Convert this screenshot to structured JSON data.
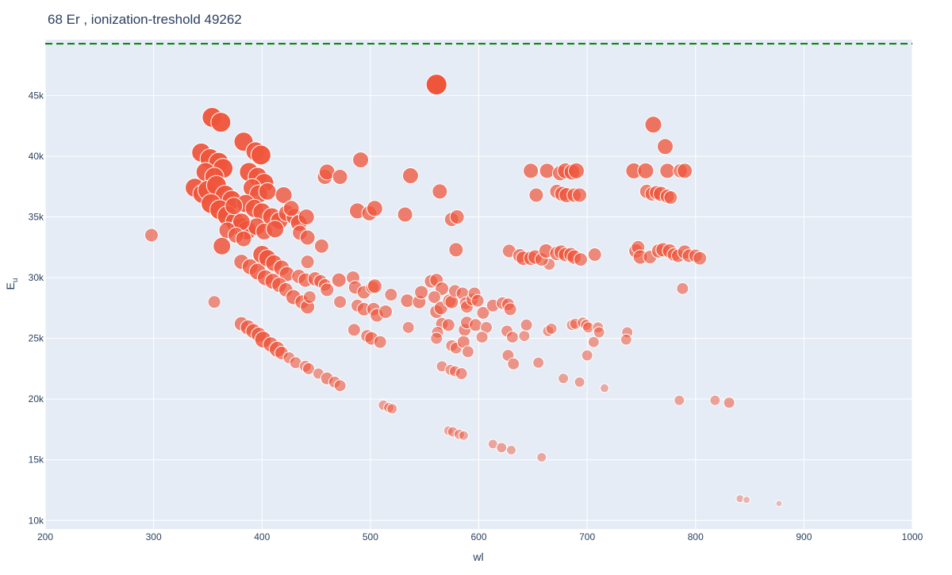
{
  "chart_data": {
    "type": "scatter",
    "title": "68 Er , ionization-treshold 49262",
    "xlabel": "wl",
    "ylabel_main": "E",
    "ylabel_sub": "u",
    "xlim": [
      200,
      1000
    ],
    "ylim": [
      9300,
      49600
    ],
    "xticks": [
      200,
      300,
      400,
      500,
      600,
      700,
      800,
      900,
      1000
    ],
    "yticks": [
      10000,
      15000,
      20000,
      25000,
      30000,
      35000,
      40000,
      45000
    ],
    "ytick_labels": [
      "10k",
      "15k",
      "20k",
      "25k",
      "30k",
      "35k",
      "40k",
      "45k"
    ],
    "threshold": 49262,
    "grid": true,
    "colors": {
      "background": "#E5ECF6",
      "marker": "#EF553B",
      "threshold_line": "#008000",
      "text": "#2a3f5f",
      "grid": "#ffffff"
    },
    "points": [
      [
        561,
        45900,
        1.0
      ],
      [
        354,
        43200,
        0.95
      ],
      [
        362,
        42800,
        0.95
      ],
      [
        383,
        41200,
        0.9
      ],
      [
        394,
        40400,
        0.9
      ],
      [
        399,
        40100,
        0.95
      ],
      [
        344,
        40300,
        0.9
      ],
      [
        352,
        39800,
        0.95
      ],
      [
        360,
        39500,
        0.95
      ],
      [
        364,
        39000,
        0.95
      ],
      [
        348,
        38700,
        0.9
      ],
      [
        356,
        38300,
        0.9
      ],
      [
        338,
        37400,
        0.9
      ],
      [
        345,
        36900,
        0.9
      ],
      [
        350,
        37200,
        0.95
      ],
      [
        358,
        37600,
        0.95
      ],
      [
        366,
        36800,
        0.95
      ],
      [
        372,
        36400,
        0.9
      ],
      [
        353,
        36100,
        0.95
      ],
      [
        361,
        35600,
        0.95
      ],
      [
        368,
        35100,
        0.95
      ],
      [
        375,
        34600,
        0.9
      ],
      [
        380,
        34200,
        0.9
      ],
      [
        386,
        33900,
        0.9
      ],
      [
        388,
        38700,
        0.9
      ],
      [
        396,
        38300,
        0.9
      ],
      [
        402,
        37800,
        0.9
      ],
      [
        391,
        37400,
        0.85
      ],
      [
        397,
        36900,
        0.85
      ],
      [
        405,
        37100,
        0.8
      ],
      [
        385,
        36100,
        0.85
      ],
      [
        393,
        35700,
        0.85
      ],
      [
        400,
        35400,
        0.85
      ],
      [
        409,
        35000,
        0.85
      ],
      [
        416,
        34700,
        0.8
      ],
      [
        423,
        35300,
        0.75
      ],
      [
        430,
        35000,
        0.75
      ],
      [
        434,
        34500,
        0.75
      ],
      [
        441,
        35000,
        0.7
      ],
      [
        395,
        34200,
        0.8
      ],
      [
        402,
        33800,
        0.75
      ],
      [
        412,
        34000,
        0.8
      ],
      [
        381,
        34600,
        0.8
      ],
      [
        374,
        35900,
        0.8
      ],
      [
        368,
        33900,
        0.75
      ],
      [
        376,
        33500,
        0.7
      ],
      [
        383,
        33200,
        0.7
      ],
      [
        420,
        36800,
        0.75
      ],
      [
        427,
        35700,
        0.7
      ],
      [
        435,
        33700,
        0.65
      ],
      [
        442,
        33300,
        0.65
      ],
      [
        455,
        32600,
        0.6
      ],
      [
        363,
        32600,
        0.8
      ],
      [
        298,
        33500,
        0.55
      ],
      [
        381,
        31300,
        0.65
      ],
      [
        389,
        30900,
        0.7
      ],
      [
        396,
        30500,
        0.75
      ],
      [
        400,
        31900,
        0.85
      ],
      [
        405,
        31600,
        0.8
      ],
      [
        411,
        31200,
        0.75
      ],
      [
        418,
        30800,
        0.7
      ],
      [
        423,
        30300,
        0.65
      ],
      [
        403,
        30000,
        0.7
      ],
      [
        410,
        29700,
        0.7
      ],
      [
        416,
        29400,
        0.65
      ],
      [
        422,
        29000,
        0.6
      ],
      [
        429,
        28400,
        0.65
      ],
      [
        437,
        28000,
        0.6
      ],
      [
        442,
        27600,
        0.6
      ],
      [
        434,
        30100,
        0.6
      ],
      [
        440,
        29800,
        0.6
      ],
      [
        449,
        29900,
        0.6
      ],
      [
        454,
        29700,
        0.55
      ],
      [
        442,
        31300,
        0.55
      ],
      [
        381,
        26200,
        0.6
      ],
      [
        387,
        25900,
        0.65
      ],
      [
        392,
        25600,
        0.65
      ],
      [
        397,
        25300,
        0.65
      ],
      [
        401,
        24900,
        0.75
      ],
      [
        408,
        24500,
        0.65
      ],
      [
        414,
        24100,
        0.7
      ],
      [
        418,
        23800,
        0.55
      ],
      [
        425,
        23400,
        0.45
      ],
      [
        431,
        23000,
        0.45
      ],
      [
        440,
        22700,
        0.45
      ],
      [
        443,
        22500,
        0.45
      ],
      [
        452,
        22100,
        0.4
      ],
      [
        460,
        21700,
        0.5
      ],
      [
        467,
        21400,
        0.45
      ],
      [
        472,
        21100,
        0.45
      ],
      [
        356,
        28000,
        0.5
      ],
      [
        458,
        38300,
        0.65
      ],
      [
        460,
        38700,
        0.7
      ],
      [
        472,
        38300,
        0.65
      ],
      [
        491,
        39700,
        0.7
      ],
      [
        488,
        35500,
        0.7
      ],
      [
        499,
        35300,
        0.65
      ],
      [
        504,
        35700,
        0.7
      ],
      [
        532,
        35200,
        0.65
      ],
      [
        537,
        38400,
        0.7
      ],
      [
        564,
        37100,
        0.65
      ],
      [
        575,
        34800,
        0.6
      ],
      [
        580,
        35000,
        0.6
      ],
      [
        579,
        32300,
        0.6
      ],
      [
        471,
        29800,
        0.6
      ],
      [
        484,
        30000,
        0.55
      ],
      [
        486,
        29200,
        0.55
      ],
      [
        494,
        28800,
        0.55
      ],
      [
        502,
        29200,
        0.55
      ],
      [
        504,
        29300,
        0.6
      ],
      [
        444,
        28400,
        0.5
      ],
      [
        458,
        29400,
        0.5
      ],
      [
        460,
        29000,
        0.55
      ],
      [
        472,
        28000,
        0.5
      ],
      [
        488,
        27700,
        0.5
      ],
      [
        494,
        27400,
        0.55
      ],
      [
        503,
        27400,
        0.55
      ],
      [
        506,
        26900,
        0.55
      ],
      [
        514,
        27200,
        0.55
      ],
      [
        485,
        25700,
        0.5
      ],
      [
        497,
        25200,
        0.5
      ],
      [
        501,
        25000,
        0.55
      ],
      [
        509,
        24700,
        0.5
      ],
      [
        519,
        28600,
        0.5
      ],
      [
        534,
        28100,
        0.55
      ],
      [
        545,
        28000,
        0.55
      ],
      [
        547,
        28800,
        0.55
      ],
      [
        556,
        29700,
        0.55
      ],
      [
        561,
        29800,
        0.55
      ],
      [
        566,
        29100,
        0.55
      ],
      [
        559,
        28400,
        0.5
      ],
      [
        561,
        27200,
        0.55
      ],
      [
        565,
        27500,
        0.55
      ],
      [
        573,
        28100,
        0.55
      ],
      [
        575,
        28000,
        0.55
      ],
      [
        578,
        28900,
        0.5
      ],
      [
        585,
        28700,
        0.5
      ],
      [
        588,
        27900,
        0.5
      ],
      [
        589,
        27600,
        0.5
      ],
      [
        594,
        28200,
        0.5
      ],
      [
        596,
        28700,
        0.5
      ],
      [
        599,
        28100,
        0.5
      ],
      [
        604,
        27100,
        0.5
      ],
      [
        613,
        27700,
        0.5
      ],
      [
        622,
        27900,
        0.5
      ],
      [
        627,
        27800,
        0.5
      ],
      [
        629,
        27400,
        0.5
      ],
      [
        535,
        25900,
        0.45
      ],
      [
        566,
        26200,
        0.5
      ],
      [
        572,
        26100,
        0.5
      ],
      [
        562,
        25500,
        0.45
      ],
      [
        561,
        25000,
        0.45
      ],
      [
        575,
        24400,
        0.45
      ],
      [
        579,
        24200,
        0.45
      ],
      [
        587,
        25700,
        0.5
      ],
      [
        589,
        26300,
        0.5
      ],
      [
        597,
        26100,
        0.5
      ],
      [
        607,
        25900,
        0.45
      ],
      [
        603,
        25100,
        0.45
      ],
      [
        586,
        24700,
        0.5
      ],
      [
        590,
        23900,
        0.45
      ],
      [
        626,
        25600,
        0.45
      ],
      [
        631,
        25100,
        0.45
      ],
      [
        642,
        25200,
        0.4
      ],
      [
        644,
        26100,
        0.45
      ],
      [
        664,
        25600,
        0.4
      ],
      [
        667,
        25800,
        0.4
      ],
      [
        686,
        26100,
        0.4
      ],
      [
        689,
        26200,
        0.4
      ],
      [
        696,
        26300,
        0.4
      ],
      [
        699,
        26100,
        0.4
      ],
      [
        701,
        25900,
        0.4
      ],
      [
        710,
        25900,
        0.4
      ],
      [
        711,
        25500,
        0.4
      ],
      [
        706,
        24700,
        0.4
      ],
      [
        700,
        23600,
        0.4
      ],
      [
        737,
        25500,
        0.4
      ],
      [
        736,
        24900,
        0.4
      ],
      [
        627,
        23600,
        0.45
      ],
      [
        632,
        22900,
        0.45
      ],
      [
        655,
        23000,
        0.4
      ],
      [
        566,
        22700,
        0.4
      ],
      [
        574,
        22400,
        0.4
      ],
      [
        578,
        22300,
        0.4
      ],
      [
        584,
        22100,
        0.45
      ],
      [
        678,
        21700,
        0.35
      ],
      [
        693,
        21400,
        0.35
      ],
      [
        716,
        20900,
        0.25
      ],
      [
        788,
        29100,
        0.45
      ],
      [
        665,
        31100,
        0.45
      ],
      [
        512,
        19500,
        0.35
      ],
      [
        517,
        19300,
        0.35
      ],
      [
        520,
        19200,
        0.35
      ],
      [
        572,
        17400,
        0.3
      ],
      [
        576,
        17300,
        0.35
      ],
      [
        582,
        17100,
        0.35
      ],
      [
        586,
        17000,
        0.3
      ],
      [
        613,
        16300,
        0.3
      ],
      [
        621,
        16000,
        0.35
      ],
      [
        630,
        15800,
        0.3
      ],
      [
        658,
        15200,
        0.3
      ],
      [
        785,
        19900,
        0.35
      ],
      [
        818,
        19900,
        0.35
      ],
      [
        831,
        19700,
        0.4
      ],
      [
        841,
        11800,
        0.2
      ],
      [
        847,
        11700,
        0.15
      ],
      [
        877,
        11400,
        0.1
      ],
      [
        648,
        38800,
        0.65
      ],
      [
        663,
        38800,
        0.65
      ],
      [
        675,
        38600,
        0.65
      ],
      [
        680,
        38800,
        0.7
      ],
      [
        686,
        38700,
        0.7
      ],
      [
        690,
        38800,
        0.7
      ],
      [
        653,
        36800,
        0.6
      ],
      [
        672,
        37100,
        0.6
      ],
      [
        677,
        36900,
        0.65
      ],
      [
        681,
        36800,
        0.65
      ],
      [
        688,
        36800,
        0.6
      ],
      [
        693,
        36800,
        0.6
      ],
      [
        628,
        32200,
        0.55
      ],
      [
        638,
        31800,
        0.6
      ],
      [
        641,
        31600,
        0.6
      ],
      [
        648,
        31600,
        0.6
      ],
      [
        652,
        31700,
        0.6
      ],
      [
        658,
        31500,
        0.55
      ],
      [
        662,
        32200,
        0.6
      ],
      [
        672,
        32000,
        0.6
      ],
      [
        676,
        32100,
        0.6
      ],
      [
        680,
        31900,
        0.6
      ],
      [
        685,
        31900,
        0.6
      ],
      [
        688,
        31700,
        0.6
      ],
      [
        694,
        31500,
        0.55
      ],
      [
        707,
        31900,
        0.55
      ],
      [
        743,
        38800,
        0.7
      ],
      [
        754,
        38800,
        0.7
      ],
      [
        774,
        38800,
        0.65
      ],
      [
        786,
        38800,
        0.6
      ],
      [
        790,
        38800,
        0.65
      ],
      [
        755,
        37100,
        0.6
      ],
      [
        760,
        36900,
        0.6
      ],
      [
        764,
        37000,
        0.6
      ],
      [
        768,
        36900,
        0.65
      ],
      [
        774,
        36700,
        0.6
      ],
      [
        777,
        36600,
        0.55
      ],
      [
        761,
        42600,
        0.75
      ],
      [
        772,
        40800,
        0.7
      ],
      [
        745,
        32200,
        0.6
      ],
      [
        747,
        32500,
        0.55
      ],
      [
        749,
        31700,
        0.6
      ],
      [
        758,
        31700,
        0.55
      ],
      [
        766,
        32200,
        0.6
      ],
      [
        770,
        32300,
        0.6
      ],
      [
        776,
        32200,
        0.6
      ],
      [
        780,
        31900,
        0.55
      ],
      [
        784,
        31800,
        0.55
      ],
      [
        790,
        32100,
        0.6
      ],
      [
        794,
        31800,
        0.55
      ],
      [
        800,
        31800,
        0.55
      ],
      [
        804,
        31600,
        0.55
      ]
    ]
  }
}
